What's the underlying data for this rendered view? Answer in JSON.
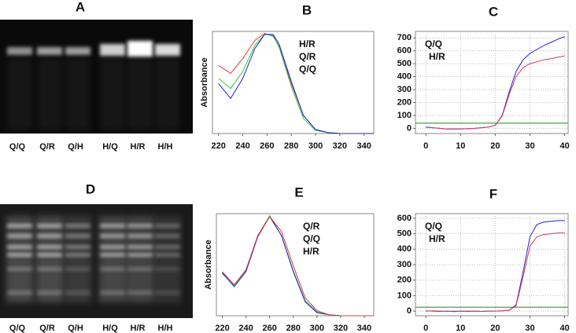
{
  "gels": [
    {
      "title": "A",
      "lanes": [
        "Q/Q",
        "Q/R",
        "Q/H",
        "H/Q",
        "H/R",
        "H/H"
      ]
    },
    {
      "title": "D",
      "lanes": [
        "Q/Q",
        "Q/R",
        "Q/H",
        "H/Q",
        "H/R",
        "H/H"
      ]
    }
  ],
  "chart_data": [
    {
      "type": "line",
      "title": "B",
      "ylabel": "Absorbance",
      "legend": "upper right",
      "grid": false,
      "x": [
        220,
        230,
        240,
        250,
        258,
        265,
        270,
        280,
        290,
        300,
        310,
        320,
        330,
        340,
        348
      ],
      "xlim": [
        215,
        348
      ],
      "xticks": [
        220,
        240,
        260,
        280,
        300,
        320,
        340
      ],
      "ylim": [
        0,
        1.02
      ],
      "series": [
        {
          "name": "H/R",
          "color": "#e03a3a",
          "values": [
            0.68,
            0.6,
            0.75,
            0.93,
            1.0,
            0.97,
            0.87,
            0.5,
            0.18,
            0.04,
            0.01,
            0,
            0,
            0,
            0
          ]
        },
        {
          "name": "Q/R",
          "color": "#2ecc40",
          "values": [
            0.55,
            0.45,
            0.62,
            0.88,
            0.99,
            0.98,
            0.86,
            0.47,
            0.15,
            0.03,
            0.01,
            0,
            0,
            0,
            0
          ]
        },
        {
          "name": "Q/Q",
          "color": "#2222cc",
          "values": [
            0.5,
            0.35,
            0.55,
            0.85,
            0.99,
            0.99,
            0.89,
            0.52,
            0.18,
            0.04,
            0.01,
            0,
            0,
            0,
            0
          ]
        }
      ]
    },
    {
      "type": "line",
      "title": "C",
      "legend": "upper left",
      "grid": true,
      "threshold": 40,
      "x": [
        0,
        2,
        4,
        6,
        8,
        10,
        12,
        14,
        16,
        18,
        20,
        22,
        24,
        26,
        28,
        30,
        32,
        34,
        36,
        38,
        40
      ],
      "xlim": [
        -3,
        41
      ],
      "xticks": [
        0,
        10,
        20,
        30,
        40
      ],
      "ylim": [
        -40,
        750
      ],
      "yticks": [
        0,
        100,
        200,
        300,
        400,
        500,
        600,
        700
      ],
      "series": [
        {
          "name": "Q/Q",
          "color": "#2222cc",
          "values": [
            10,
            5,
            0,
            -5,
            -5,
            -5,
            -3,
            0,
            5,
            10,
            25,
            100,
            280,
            440,
            530,
            580,
            610,
            640,
            665,
            690,
            710
          ]
        },
        {
          "name": "H/R",
          "color": "#d83a5a",
          "values": [
            8,
            4,
            0,
            -5,
            -5,
            -5,
            -3,
            0,
            5,
            10,
            25,
            95,
            260,
            400,
            470,
            500,
            515,
            530,
            540,
            550,
            560
          ]
        }
      ]
    },
    {
      "type": "line",
      "title": "E",
      "ylabel": "Absorbance",
      "legend": "upper right",
      "grid": false,
      "x": [
        220,
        230,
        240,
        250,
        260,
        270,
        280,
        290,
        300,
        310,
        320,
        330,
        340,
        348
      ],
      "xlim": [
        215,
        348
      ],
      "xticks": [
        220,
        240,
        260,
        280,
        300,
        320,
        340
      ],
      "ylim": [
        0,
        1.02
      ],
      "series": [
        {
          "name": "Q/R",
          "color": "#2ecc40",
          "values": [
            0.42,
            0.3,
            0.45,
            0.8,
            1.0,
            0.8,
            0.45,
            0.15,
            0.04,
            0.01,
            0,
            0,
            0,
            0
          ]
        },
        {
          "name": "Q/Q",
          "color": "#2222cc",
          "values": [
            0.43,
            0.29,
            0.44,
            0.79,
            0.99,
            0.8,
            0.44,
            0.14,
            0.03,
            0.01,
            0,
            0,
            0,
            0
          ]
        },
        {
          "name": "H/R",
          "color": "#e03a3a",
          "values": [
            0.44,
            0.31,
            0.46,
            0.8,
            0.99,
            0.84,
            0.5,
            0.18,
            0.05,
            0.01,
            0,
            0,
            0,
            0
          ]
        }
      ]
    },
    {
      "type": "line",
      "title": "F",
      "legend": "upper left",
      "grid": true,
      "threshold": 25,
      "x": [
        0,
        2,
        4,
        6,
        8,
        10,
        12,
        14,
        16,
        18,
        20,
        22,
        24,
        26,
        28,
        30,
        32,
        34,
        36,
        38,
        40
      ],
      "xlim": [
        -3,
        41
      ],
      "xticks": [
        0,
        10,
        20,
        30,
        40
      ],
      "ylim": [
        -30,
        630
      ],
      "yticks": [
        0,
        100,
        200,
        300,
        400,
        500,
        600
      ],
      "series": [
        {
          "name": "Q/Q",
          "color": "#2222cc",
          "values": [
            2,
            0,
            -2,
            0,
            -3,
            0,
            -2,
            0,
            -2,
            0,
            0,
            2,
            5,
            40,
            250,
            480,
            560,
            575,
            580,
            585,
            585
          ]
        },
        {
          "name": "H/R",
          "color": "#d83a5a",
          "values": [
            0,
            2,
            0,
            -2,
            0,
            -2,
            0,
            0,
            -2,
            0,
            0,
            2,
            5,
            35,
            220,
            420,
            480,
            495,
            500,
            505,
            505
          ]
        }
      ]
    }
  ]
}
